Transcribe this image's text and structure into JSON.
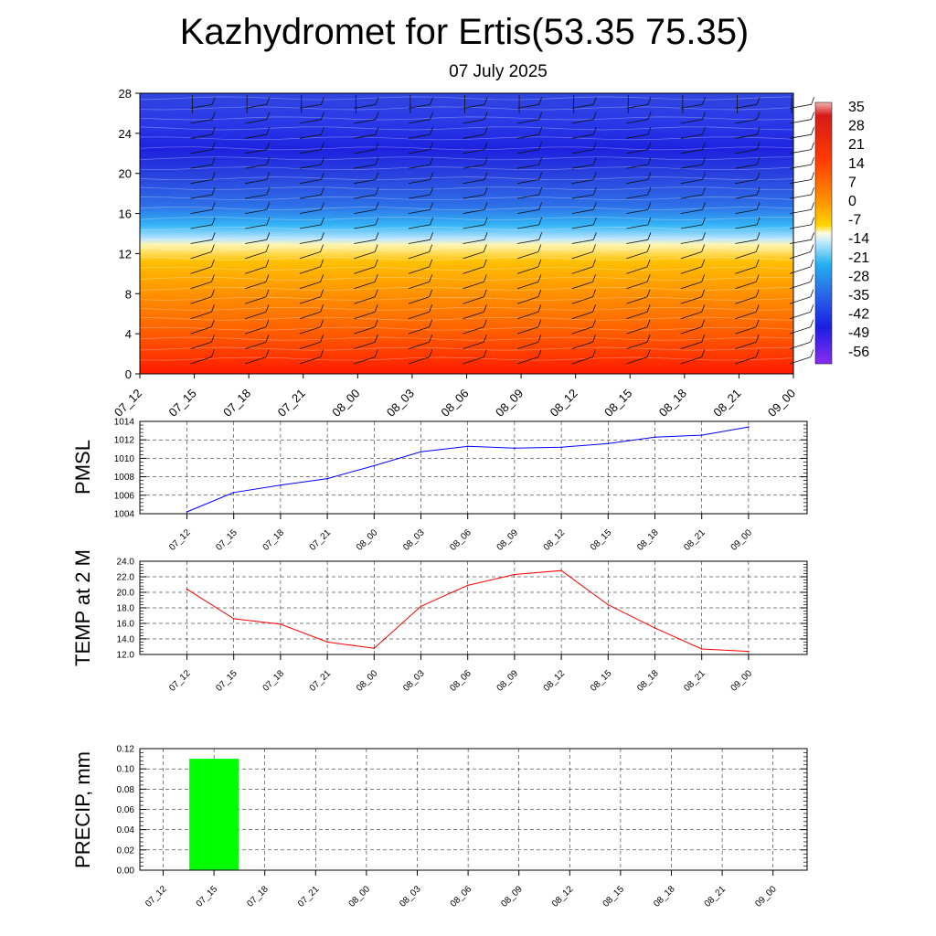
{
  "title": "Kazhydromet for Ertis(53.35 75.35)",
  "subtitle": "07 July 2025",
  "colorbar": {
    "labels": [
      "35",
      "28",
      "21",
      "14",
      "7",
      "0",
      "-7",
      "-14",
      "-21",
      "-28",
      "-35",
      "-42",
      "-49",
      "-56"
    ]
  },
  "chart_data": [
    {
      "type": "heatmap",
      "name": "temperature-height-section",
      "x": [
        "07_12",
        "07_15",
        "07_18",
        "07_21",
        "08_00",
        "08_03",
        "08_06",
        "08_09",
        "08_12",
        "08_15",
        "08_18",
        "08_21",
        "09_00"
      ],
      "yticks": [
        0,
        4,
        8,
        12,
        16,
        20,
        24,
        28
      ],
      "ylim": [
        0,
        28
      ],
      "color_scale": [
        -56,
        35
      ],
      "freezing_level_approx": 13,
      "overlay": "wind barbs"
    },
    {
      "type": "line",
      "ylabel": "PMSL",
      "x": [
        "07_12",
        "07_15",
        "07_18",
        "07_21",
        "08_00",
        "08_03",
        "08_06",
        "08_09",
        "08_12",
        "08_15",
        "08_18",
        "08_21",
        "09_00"
      ],
      "yticks": [
        "1004",
        "1006",
        "1008",
        "1010",
        "1012",
        "1014"
      ],
      "ylim": [
        1004,
        1014
      ],
      "series": [
        {
          "color": "#0000ff",
          "values": [
            1004.2,
            1006.3,
            1007.1,
            1007.8,
            1009.2,
            1010.7,
            1011.3,
            1011.1,
            1011.2,
            1011.6,
            1012.3,
            1012.5,
            1013.4
          ]
        }
      ],
      "grid": true
    },
    {
      "type": "line",
      "ylabel": "TEMP at 2 M",
      "x": [
        "07_12",
        "07_15",
        "07_18",
        "07_21",
        "08_00",
        "08_03",
        "08_06",
        "08_09",
        "08_12",
        "08_15",
        "08_18",
        "08_21",
        "09_00"
      ],
      "yticks": [
        "12.0",
        "14.0",
        "16.0",
        "18.0",
        "20.0",
        "22.0",
        "24.0"
      ],
      "ylim": [
        12,
        24
      ],
      "series": [
        {
          "color": "#ff0000",
          "values": [
            20.4,
            16.6,
            15.9,
            13.6,
            12.8,
            18.2,
            20.9,
            22.3,
            22.8,
            18.4,
            15.4,
            12.7,
            12.4
          ]
        }
      ],
      "grid": true
    },
    {
      "type": "bar",
      "ylabel": "PRECIP, mm",
      "categories": [
        "07_12",
        "07_15",
        "07_18",
        "07_21",
        "08_00",
        "08_03",
        "08_06",
        "08_09",
        "08_12",
        "08_15",
        "08_18",
        "08_21",
        "09_00"
      ],
      "values": [
        0,
        0.11,
        0,
        0,
        0,
        0,
        0,
        0,
        0,
        0,
        0,
        0,
        0
      ],
      "bar_color": "#00ff00",
      "yticks": [
        "0.00",
        "0.02",
        "0.04",
        "0.06",
        "0.08",
        "0.10",
        "0.12"
      ],
      "ylim": [
        0,
        0.12
      ],
      "grid": true
    }
  ]
}
